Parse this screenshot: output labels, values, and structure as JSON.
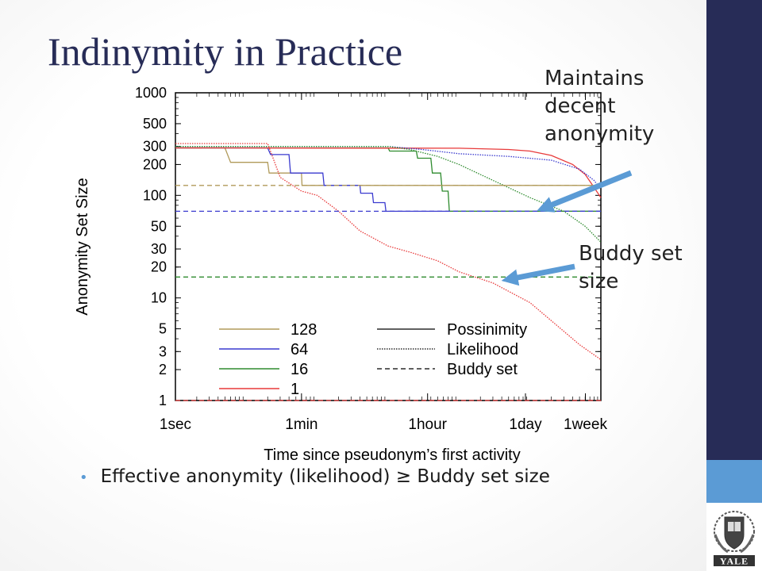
{
  "slide": {
    "title": "Indinymity in Practice",
    "bullet": "Effective anonymity (likelihood) ≥ Buddy set size"
  },
  "annotations": [
    {
      "id": "anon",
      "lines": [
        "Maintains",
        "decent",
        "anonymity"
      ]
    },
    {
      "id": "buddy",
      "lines": [
        "Buddy set",
        "size"
      ]
    }
  ],
  "theme": {
    "title_color": "#272c57",
    "side_bar": "#272c57",
    "accent": "#5b9bd5",
    "arrow": "#5b9bd5"
  },
  "logo": {
    "icon": "yale-shield-icon",
    "text": "YALE"
  },
  "chart_data": {
    "type": "line",
    "xlabel": "Time since pseudonym’s first activity",
    "ylabel": "Anonymity Set Size",
    "xscale": "log",
    "yscale": "log",
    "xlim": [
      1,
      1000000
    ],
    "ylim": [
      1,
      1000
    ],
    "xticks": [
      {
        "v": 1,
        "label": "1sec"
      },
      {
        "v": 60,
        "label": "1min"
      },
      {
        "v": 3600,
        "label": "1hour"
      },
      {
        "v": 86400,
        "label": "1day"
      },
      {
        "v": 604800,
        "label": "1week"
      }
    ],
    "yticks": [
      {
        "v": 1,
        "label": "1"
      },
      {
        "v": 2,
        "label": "2"
      },
      {
        "v": 3,
        "label": "3"
      },
      {
        "v": 5,
        "label": "5"
      },
      {
        "v": 10,
        "label": "10"
      },
      {
        "v": 20,
        "label": "20"
      },
      {
        "v": 30,
        "label": "30"
      },
      {
        "v": 50,
        "label": "50"
      },
      {
        "v": 100,
        "label": "100"
      },
      {
        "v": 200,
        "label": "200"
      },
      {
        "v": 300,
        "label": "300"
      },
      {
        "v": 500,
        "label": "500"
      },
      {
        "v": 1000,
        "label": "1000"
      }
    ],
    "legend_position": "bottom-left",
    "group_legend": [
      {
        "label": "128",
        "color": "#b09a5a"
      },
      {
        "label": "64",
        "color": "#3a3acf"
      },
      {
        "label": "16",
        "color": "#2e8b2e"
      },
      {
        "label": "1",
        "color": "#e83a3a"
      }
    ],
    "style_legend": [
      {
        "label": "Possinimity",
        "dash": "solid"
      },
      {
        "label": "Likelihood",
        "dash": "dotted"
      },
      {
        "label": "Buddy set",
        "dash": "dashed"
      }
    ],
    "series": [
      {
        "group": "128",
        "metric": "Possinimity",
        "color": "#b09a5a",
        "dash": "solid",
        "points": [
          [
            1,
            290
          ],
          [
            5,
            290
          ],
          [
            6,
            210
          ],
          [
            20,
            210
          ],
          [
            21,
            165
          ],
          [
            60,
            165
          ],
          [
            61,
            125
          ],
          [
            1000000,
            125
          ]
        ]
      },
      {
        "group": "64",
        "metric": "Possinimity",
        "color": "#3a3acf",
        "dash": "solid",
        "points": [
          [
            1,
            290
          ],
          [
            20,
            290
          ],
          [
            22,
            250
          ],
          [
            40,
            250
          ],
          [
            42,
            165
          ],
          [
            120,
            165
          ],
          [
            125,
            125
          ],
          [
            400,
            125
          ],
          [
            410,
            105
          ],
          [
            600,
            105
          ],
          [
            620,
            85
          ],
          [
            900,
            85
          ],
          [
            930,
            70
          ],
          [
            1000000,
            70
          ]
        ]
      },
      {
        "group": "16",
        "metric": "Possinimity",
        "color": "#2e8b2e",
        "dash": "solid",
        "points": [
          [
            1,
            290
          ],
          [
            1000,
            290
          ],
          [
            1050,
            270
          ],
          [
            2500,
            270
          ],
          [
            2600,
            230
          ],
          [
            4000,
            230
          ],
          [
            4200,
            165
          ],
          [
            5500,
            165
          ],
          [
            5800,
            110
          ],
          [
            7000,
            110
          ],
          [
            7300,
            70
          ],
          [
            1000000,
            70
          ]
        ]
      },
      {
        "group": "1",
        "metric": "Possinimity",
        "color": "#e83a3a",
        "dash": "solid",
        "points": [
          [
            1,
            290
          ],
          [
            10000,
            288
          ],
          [
            50000,
            280
          ],
          [
            100000,
            270
          ],
          [
            200000,
            245
          ],
          [
            400000,
            200
          ],
          [
            600000,
            160
          ],
          [
            800000,
            120
          ],
          [
            1000000,
            95
          ]
        ]
      },
      {
        "group": "64",
        "metric": "Likelihood",
        "color": "#3a3acf",
        "dash": "dotted",
        "points": [
          [
            1,
            300
          ],
          [
            1000,
            300
          ],
          [
            3000,
            280
          ],
          [
            10000,
            255
          ],
          [
            50000,
            240
          ],
          [
            200000,
            220
          ],
          [
            500000,
            180
          ],
          [
            800000,
            140
          ],
          [
            1000000,
            115
          ]
        ]
      },
      {
        "group": "16",
        "metric": "Likelihood",
        "color": "#2e8b2e",
        "dash": "dotted",
        "points": [
          [
            1,
            300
          ],
          [
            1000,
            300
          ],
          [
            2000,
            280
          ],
          [
            5000,
            240
          ],
          [
            10000,
            200
          ],
          [
            30000,
            140
          ],
          [
            100000,
            95
          ],
          [
            300000,
            70
          ],
          [
            600000,
            50
          ],
          [
            1000000,
            35
          ]
        ]
      },
      {
        "group": "1",
        "metric": "Likelihood",
        "color": "#e83a3a",
        "dash": "dotted",
        "points": [
          [
            1,
            320
          ],
          [
            20,
            320
          ],
          [
            30,
            150
          ],
          [
            60,
            110
          ],
          [
            100,
            100
          ],
          [
            200,
            70
          ],
          [
            400,
            45
          ],
          [
            1000,
            32
          ],
          [
            2000,
            28
          ],
          [
            5000,
            23
          ],
          [
            10000,
            18
          ],
          [
            30000,
            14
          ],
          [
            100000,
            9
          ],
          [
            200000,
            6
          ],
          [
            500000,
            3.5
          ],
          [
            1000000,
            2.5
          ]
        ]
      },
      {
        "group": "128",
        "metric": "Buddy set",
        "color": "#b09a5a",
        "dash": "dashed",
        "points": [
          [
            1,
            125
          ],
          [
            1000000,
            125
          ]
        ]
      },
      {
        "group": "64",
        "metric": "Buddy set",
        "color": "#3a3acf",
        "dash": "dashed",
        "points": [
          [
            1,
            70
          ],
          [
            1000000,
            70
          ]
        ]
      },
      {
        "group": "16",
        "metric": "Buddy set",
        "color": "#2e8b2e",
        "dash": "dashed",
        "points": [
          [
            1,
            16
          ],
          [
            1000000,
            16
          ]
        ]
      },
      {
        "group": "1",
        "metric": "Buddy set",
        "color": "#e83a3a",
        "dash": "dashed",
        "points": [
          [
            1,
            1
          ],
          [
            1000000,
            1
          ]
        ]
      }
    ]
  }
}
